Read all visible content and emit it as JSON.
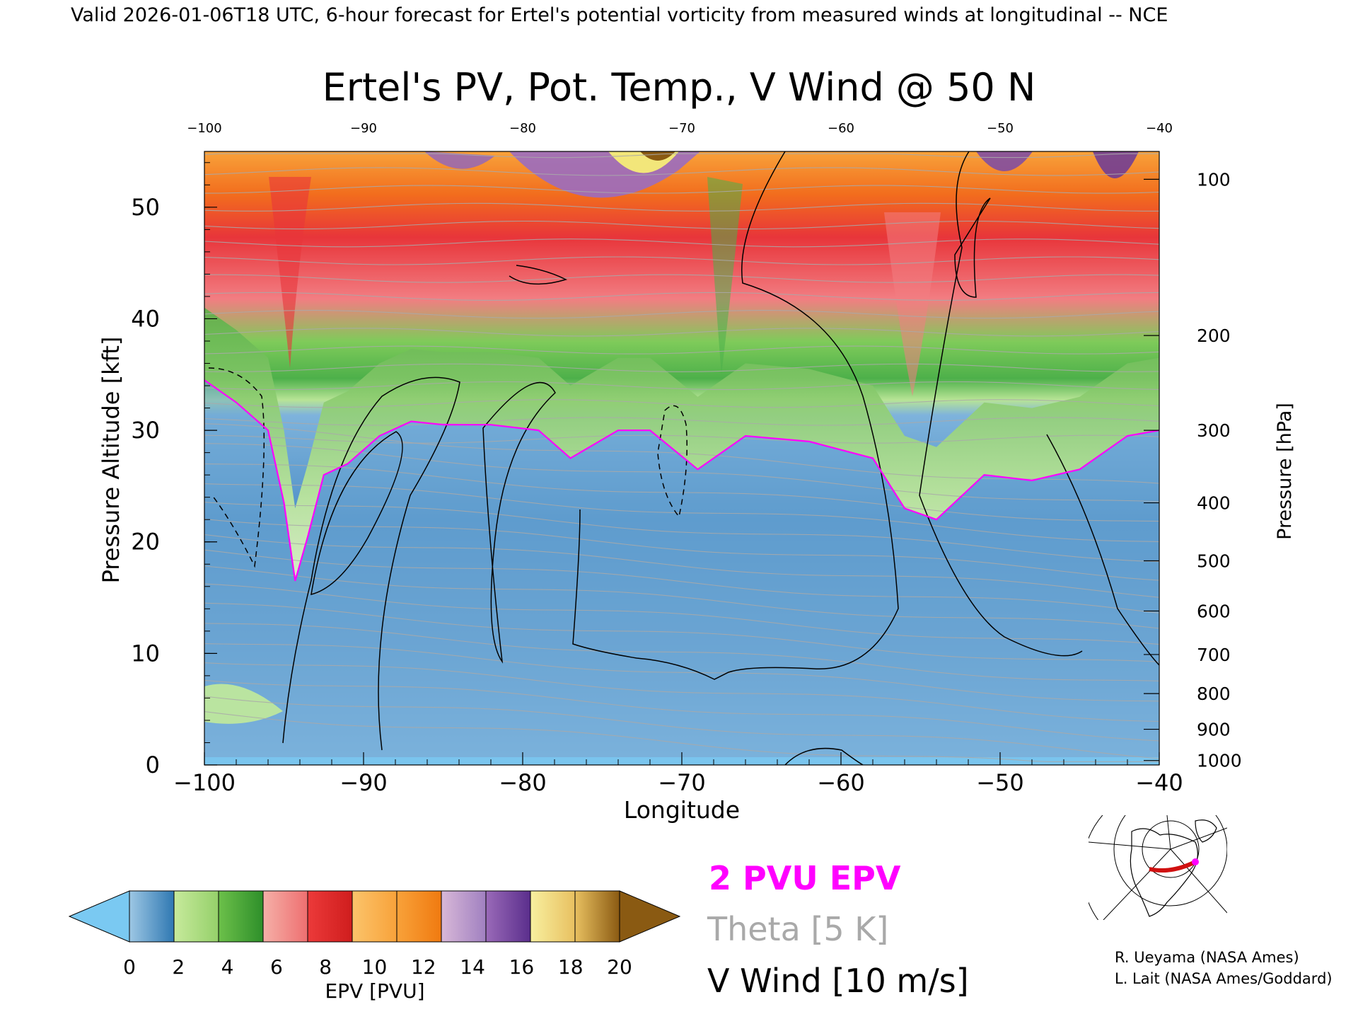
{
  "header_text": "Valid 2026-01-06T18 UTC, 6-hour forecast for Ertel's potential vorticity from measured winds at longitudinal -- NCE",
  "chart_data": {
    "type": "heatmap",
    "title": "Ertel's PV, Pot. Temp., V Wind @ 50 N",
    "xlabel": "Longitude",
    "ylabel_left": "Pressure Altitude [kft]",
    "ylabel_right": "Pressure [hPa]",
    "xlim": [
      -100,
      -40
    ],
    "ylim": [
      0,
      55
    ],
    "x_ticks": [
      -100,
      -90,
      -80,
      -70,
      -60,
      -50,
      -40
    ],
    "x_tick_labels": [
      "−100",
      "−90",
      "−80",
      "−70",
      "−60",
      "−50",
      "−40"
    ],
    "top_tick_labels": [
      "−100",
      "−90",
      "−80",
      "−70",
      "−60",
      "−50",
      "−40"
    ],
    "y_ticks": [
      0,
      10,
      20,
      30,
      40,
      50
    ],
    "pressure_ticks": [
      {
        "label": "100",
        "kft": 52.5
      },
      {
        "label": "200",
        "kft": 38.5
      },
      {
        "label": "300",
        "kft": 30.0
      },
      {
        "label": "400",
        "kft": 23.5
      },
      {
        "label": "500",
        "kft": 18.3
      },
      {
        "label": "600",
        "kft": 13.8
      },
      {
        "label": "700",
        "kft": 9.9
      },
      {
        "label": "800",
        "kft": 6.4
      },
      {
        "label": "900",
        "kft": 3.2
      },
      {
        "label": "1000",
        "kft": 0.4
      }
    ],
    "dynamical_tropopause_2pvu_kft": [
      {
        "lon": -100,
        "alt": 34.5
      },
      {
        "lon": -98,
        "alt": 32.5
      },
      {
        "lon": -96,
        "alt": 30.0
      },
      {
        "lon": -95,
        "alt": 23.5
      },
      {
        "lon": -94.3,
        "alt": 16.5
      },
      {
        "lon": -93.5,
        "alt": 20.5
      },
      {
        "lon": -92.5,
        "alt": 26.0
      },
      {
        "lon": -91,
        "alt": 27.0
      },
      {
        "lon": -89,
        "alt": 29.5
      },
      {
        "lon": -87,
        "alt": 30.8
      },
      {
        "lon": -85,
        "alt": 30.5
      },
      {
        "lon": -82,
        "alt": 30.5
      },
      {
        "lon": -79,
        "alt": 30.0
      },
      {
        "lon": -77,
        "alt": 27.5
      },
      {
        "lon": -74,
        "alt": 30.0
      },
      {
        "lon": -72,
        "alt": 30.0
      },
      {
        "lon": -69,
        "alt": 26.5
      },
      {
        "lon": -66,
        "alt": 29.5
      },
      {
        "lon": -62,
        "alt": 29.0
      },
      {
        "lon": -58,
        "alt": 27.5
      },
      {
        "lon": -56,
        "alt": 23.0
      },
      {
        "lon": -54,
        "alt": 22.0
      },
      {
        "lon": -51,
        "alt": 26.0
      },
      {
        "lon": -48,
        "alt": 25.5
      },
      {
        "lon": -45,
        "alt": 26.5
      },
      {
        "lon": -42,
        "alt": 29.5
      },
      {
        "lon": -40,
        "alt": 30.0
      }
    ],
    "legend": [
      {
        "label": "2 PVU EPV",
        "color": "#ff00ff"
      },
      {
        "label": "Theta [5 K]",
        "color": "#a9a9a9"
      },
      {
        "label": "V Wind [10 m/s]",
        "color": "#000000"
      }
    ],
    "colorbar": {
      "label": "EPV [PVU]",
      "tick_labels": [
        "0",
        "2",
        "4",
        "6",
        "8",
        "10",
        "12",
        "14",
        "16",
        "18",
        "20"
      ],
      "below_color": "#7ac9f2",
      "above_color": "#8a5a12",
      "segments": [
        [
          "#9dc7e4",
          "#2f78b2"
        ],
        [
          "#c7ea9c",
          "#95d06a"
        ],
        [
          "#6cc04a",
          "#2e8f2a"
        ],
        [
          "#f5b0a8",
          "#ee6f70"
        ],
        [
          "#ec3a3a",
          "#cf1d1d"
        ],
        [
          "#fbc46b",
          "#f8a23a"
        ],
        [
          "#f8a23a",
          "#f07a10"
        ],
        [
          "#d8b8d8",
          "#a080c0"
        ],
        [
          "#9a6ab8",
          "#5a2e8c"
        ],
        [
          "#f8f0a0",
          "#e8c060"
        ],
        [
          "#e8c060",
          "#8a5a12"
        ]
      ]
    }
  },
  "inset_map_label": "",
  "credits": [
    "R. Ueyama (NASA Ames)",
    "L. Lait (NASA Ames/Goddard)"
  ]
}
